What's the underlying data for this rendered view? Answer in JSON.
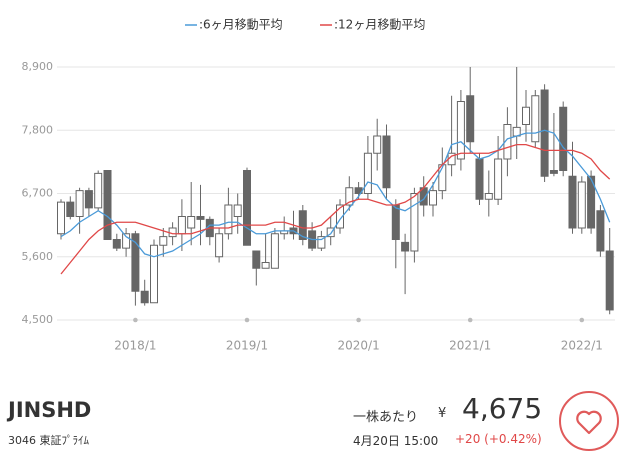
{
  "chart_data": {
    "type": "candlestick",
    "legend": [
      {
        "name": ":6ヶ月移動平均",
        "color": "#4a9ad8"
      },
      {
        "name": ":12ヶ月移動平均",
        "color": "#e04848"
      }
    ],
    "categories": [
      null,
      null,
      null,
      null,
      null,
      null,
      null,
      null,
      "2018/1",
      null,
      null,
      null,
      null,
      null,
      null,
      null,
      null,
      null,
      null,
      null,
      "2019/1",
      null,
      null,
      null,
      null,
      null,
      null,
      null,
      null,
      null,
      null,
      null,
      "2020/1",
      null,
      null,
      null,
      null,
      null,
      null,
      null,
      null,
      null,
      null,
      null,
      "2021/1",
      null,
      null,
      null,
      null,
      null,
      null,
      null,
      null,
      null,
      null,
      null,
      "2022/1",
      null,
      null,
      null
    ],
    "open": [
      6000,
      6550,
      6300,
      6750,
      6450,
      7100,
      5900,
      5750,
      6000,
      5000,
      4800,
      5800,
      5950,
      6000,
      6100,
      6300,
      6250,
      5600,
      6000,
      6300,
      7100,
      5700,
      5400,
      5400,
      6000,
      6100,
      6400,
      6050,
      5750,
      5950,
      6100,
      6500,
      6800,
      6700,
      7400,
      7700,
      6500,
      5850,
      5700,
      6800,
      6500,
      6750,
      7200,
      7300,
      8400,
      7300,
      6600,
      6600,
      7300,
      7700,
      7900,
      7600,
      8500,
      7100,
      8200,
      7000,
      6100,
      7000,
      6400,
      5700
    ],
    "high": [
      6600,
      6650,
      6800,
      6800,
      7100,
      7100,
      6000,
      6100,
      6050,
      5200,
      5900,
      6100,
      6200,
      6600,
      6900,
      6850,
      6300,
      6100,
      6800,
      6700,
      7150,
      5700,
      6000,
      6100,
      6300,
      6400,
      6500,
      6200,
      6050,
      6300,
      6600,
      7000,
      6900,
      7700,
      8000,
      7900,
      6600,
      6000,
      6800,
      7000,
      6900,
      7500,
      8400,
      8500,
      8900,
      7400,
      7100,
      7700,
      8200,
      8900,
      8500,
      8500,
      8600,
      8100,
      8300,
      7600,
      7000,
      7100,
      6500,
      6100
    ],
    "low": [
      5900,
      6250,
      6000,
      6300,
      6400,
      5900,
      5700,
      5600,
      4750,
      4750,
      4800,
      5600,
      5800,
      5700,
      5800,
      5800,
      5800,
      5500,
      5900,
      6000,
      5800,
      5100,
      5400,
      5400,
      5900,
      5900,
      5800,
      5700,
      5700,
      5800,
      6000,
      6400,
      6600,
      6600,
      7100,
      6600,
      5400,
      4950,
      5500,
      6300,
      6300,
      6600,
      7000,
      7100,
      7400,
      6500,
      6300,
      6500,
      7000,
      7300,
      7600,
      7500,
      6900,
      7000,
      7000,
      6000,
      6000,
      6000,
      5600,
      4600
    ],
    "close": [
      6550,
      6300,
      6750,
      6450,
      7050,
      5900,
      5750,
      6000,
      5000,
      4800,
      5800,
      5950,
      6100,
      6300,
      6300,
      6250,
      5950,
      6000,
      6500,
      6500,
      5800,
      5400,
      5500,
      6000,
      6050,
      6000,
      5900,
      5750,
      5950,
      6100,
      6500,
      6800,
      6700,
      7400,
      7700,
      6800,
      5900,
      5700,
      6700,
      6500,
      6750,
      7200,
      7400,
      8300,
      7600,
      6600,
      6700,
      7300,
      7900,
      7850,
      8200,
      8400,
      7000,
      7050,
      7100,
      6100,
      6900,
      6100,
      5700,
      4675
    ],
    "lines": [
      {
        "name": ":6ヶ月移動平均",
        "color": "#4a9ad8",
        "values": [
          5950,
          6050,
          6200,
          6300,
          6400,
          6300,
          6150,
          5950,
          5850,
          5650,
          5600,
          5650,
          5700,
          5800,
          5900,
          6000,
          6150,
          6150,
          6200,
          6200,
          6100,
          6000,
          6000,
          6050,
          6050,
          6050,
          5950,
          5900,
          5900,
          6000,
          6250,
          6450,
          6650,
          6900,
          6850,
          6600,
          6450,
          6400,
          6500,
          6600,
          6850,
          7150,
          7550,
          7600,
          7450,
          7300,
          7350,
          7450,
          7650,
          7700,
          7750,
          7750,
          7800,
          7750,
          7500,
          7350,
          7150,
          6950,
          6600,
          6200
        ]
      },
      {
        "name": ":12ヶ月移動平均",
        "color": "#e04848",
        "values": [
          5300,
          5500,
          5700,
          5900,
          6050,
          6150,
          6200,
          6200,
          6200,
          6150,
          6100,
          6050,
          6000,
          6000,
          6000,
          6050,
          6100,
          6100,
          6100,
          6150,
          6150,
          6150,
          6150,
          6200,
          6200,
          6150,
          6100,
          6100,
          6150,
          6300,
          6450,
          6550,
          6600,
          6600,
          6550,
          6500,
          6500,
          6550,
          6650,
          6800,
          7000,
          7200,
          7350,
          7400,
          7400,
          7400,
          7400,
          7450,
          7500,
          7550,
          7550,
          7500,
          7450,
          7450,
          7450,
          7450,
          7400,
          7300,
          7100,
          6950
        ]
      }
    ],
    "ylim": [
      4500,
      8900
    ],
    "yticks": [
      {
        "value": 4500,
        "label": "4,500"
      },
      {
        "value": 5600,
        "label": "5,600"
      },
      {
        "value": 6700,
        "label": "6,700"
      },
      {
        "value": 7800,
        "label": "7,800"
      },
      {
        "value": 8900,
        "label": "8,900"
      }
    ],
    "grid": true,
    "candle_color": "#666666"
  },
  "stock": {
    "name": "JINSHD",
    "code": "3046 東証ﾌﾟﾗｲﾑ",
    "per_share": "一株あたり",
    "currency": "¥",
    "price": "4,675",
    "time": "4月20日 15:00",
    "change": "+20 (+0.42%)"
  }
}
